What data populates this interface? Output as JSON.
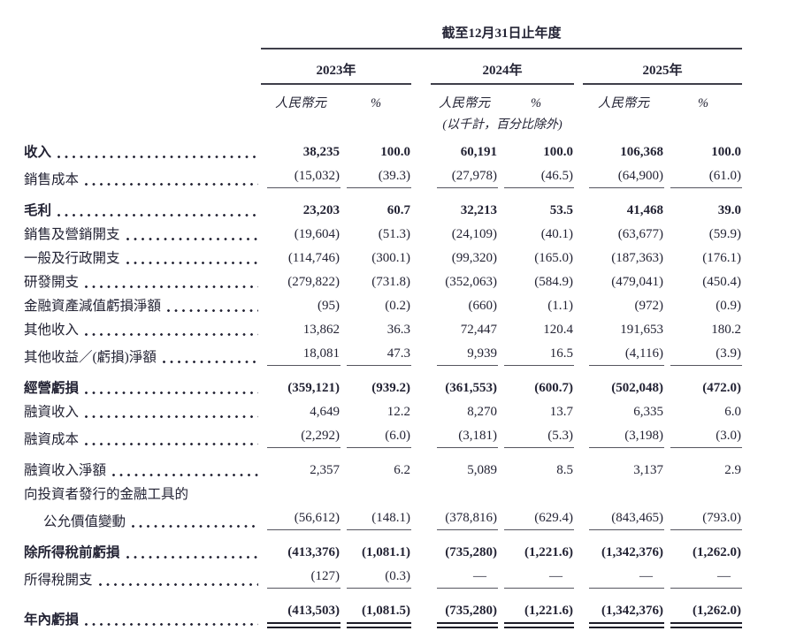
{
  "header": {
    "period_title": "截至12月31日止年度",
    "years": [
      "2023年",
      "2024年",
      "2025年"
    ],
    "currency_label": "人民幣元",
    "percent_label": "%",
    "note": "(以千計，百分比除外)"
  },
  "table": {
    "rows": [
      {
        "label": "收入",
        "bold": true,
        "values": [
          "38,235",
          "100.0",
          "60,191",
          "100.0",
          "106,368",
          "100.0"
        ]
      },
      {
        "label": "銷售成本",
        "rule_below": true,
        "values": [
          "(15,032)",
          "(39.3)",
          "(27,978)",
          "(46.5)",
          "(64,900)",
          "(61.0)"
        ]
      },
      {
        "label": "毛利",
        "bold": true,
        "gap_above": true,
        "values": [
          "23,203",
          "60.7",
          "32,213",
          "53.5",
          "41,468",
          "39.0"
        ]
      },
      {
        "label": "銷售及營銷開支",
        "values": [
          "(19,604)",
          "(51.3)",
          "(24,109)",
          "(40.1)",
          "(63,677)",
          "(59.9)"
        ]
      },
      {
        "label": "一般及行政開支",
        "values": [
          "(114,746)",
          "(300.1)",
          "(99,320)",
          "(165.0)",
          "(187,363)",
          "(176.1)"
        ]
      },
      {
        "label": "研發開支",
        "values": [
          "(279,822)",
          "(731.8)",
          "(352,063)",
          "(584.9)",
          "(479,041)",
          "(450.4)"
        ]
      },
      {
        "label": "金融資產減值虧損淨額",
        "values": [
          "(95)",
          "(0.2)",
          "(660)",
          "(1.1)",
          "(972)",
          "(0.9)"
        ]
      },
      {
        "label": "其他收入",
        "values": [
          "13,862",
          "36.3",
          "72,447",
          "120.4",
          "191,653",
          "180.2"
        ]
      },
      {
        "label": "其他收益／(虧損)淨額",
        "rule_below": true,
        "values": [
          "18,081",
          "47.3",
          "9,939",
          "16.5",
          "(4,116)",
          "(3.9)"
        ]
      },
      {
        "label": "經營虧損",
        "bold": true,
        "gap_above": true,
        "values": [
          "(359,121)",
          "(939.2)",
          "(361,553)",
          "(600.7)",
          "(502,048)",
          "(472.0)"
        ]
      },
      {
        "label": "融資收入",
        "values": [
          "4,649",
          "12.2",
          "8,270",
          "13.7",
          "6,335",
          "6.0"
        ]
      },
      {
        "label": "融資成本",
        "rule_below": true,
        "values": [
          "(2,292)",
          "(6.0)",
          "(3,181)",
          "(5.3)",
          "(3,198)",
          "(3.0)"
        ]
      },
      {
        "label": "融資收入淨額",
        "gap_above": true,
        "values": [
          "2,357",
          "6.2",
          "5,089",
          "8.5",
          "3,137",
          "2.9"
        ]
      },
      {
        "label": "向投資者發行的金融工具的",
        "values": null
      },
      {
        "label": "公允價值變動",
        "indent": true,
        "rule_below": true,
        "values": [
          "(56,612)",
          "(148.1)",
          "(378,816)",
          "(629.4)",
          "(843,465)",
          "(793.0)"
        ]
      },
      {
        "label": "除所得稅前虧損",
        "bold": true,
        "gap_above": true,
        "values": [
          "(413,376)",
          "(1,081.1)",
          "(735,280)",
          "(1,221.6)",
          "(1,342,376)",
          "(1,262.0)"
        ]
      },
      {
        "label": "所得稅開支",
        "rule_below": true,
        "values": [
          "(127)",
          "(0.3)",
          "—",
          "—",
          "—",
          "—"
        ]
      },
      {
        "label": "年內虧損",
        "bold": true,
        "gap_above": true,
        "double_rule_below": true,
        "values": [
          "(413,503)",
          "(1,081.5)",
          "(735,280)",
          "(1,221.6)",
          "(1,342,376)",
          "(1,262.0)"
        ]
      }
    ]
  }
}
